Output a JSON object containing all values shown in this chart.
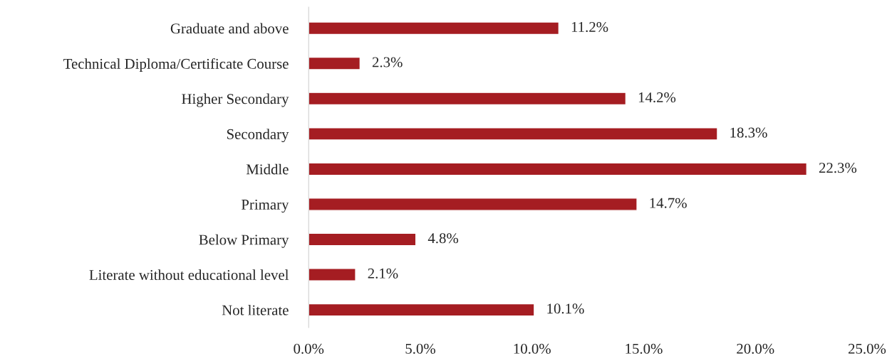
{
  "chart_data": {
    "type": "bar",
    "orientation": "horizontal",
    "categories": [
      "Graduate and above",
      "Technical Diploma/Certificate Course",
      "Higher Secondary",
      "Secondary",
      "Middle",
      "Primary",
      "Below Primary",
      "Literate without educational level",
      "Not literate"
    ],
    "values": [
      11.2,
      2.3,
      14.2,
      18.3,
      22.3,
      14.7,
      4.8,
      2.1,
      10.1
    ],
    "value_labels": [
      "11.2%",
      "2.3%",
      "14.2%",
      "18.3%",
      "22.3%",
      "14.7%",
      "4.8%",
      "2.1%",
      "10.1%"
    ],
    "color": "#a51d22",
    "xlim": [
      0,
      25
    ],
    "xticks": [
      {
        "value": 0,
        "label": "0.0%"
      },
      {
        "value": 5,
        "label": "5.0%"
      },
      {
        "value": 10,
        "label": "10.0%"
      },
      {
        "value": 15,
        "label": "15.0%"
      },
      {
        "value": 20,
        "label": "20.0%"
      },
      {
        "value": 25,
        "label": "25.0%"
      }
    ],
    "grid": false,
    "legend": false
  }
}
